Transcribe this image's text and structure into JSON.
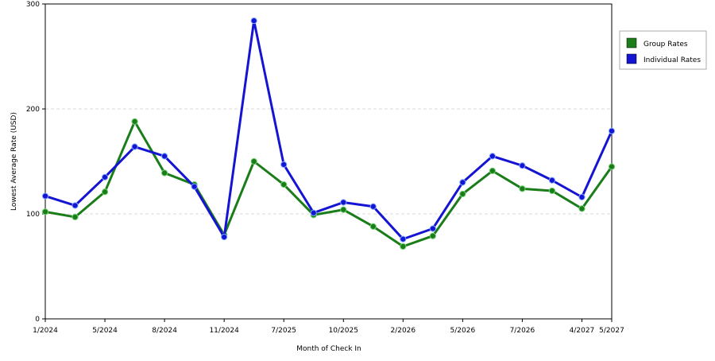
{
  "chart_data": {
    "type": "line",
    "xlabel": "Month of Check In",
    "ylabel": "Lowest Average Rate (USD)",
    "ylim": [
      0,
      300
    ],
    "yticks": [
      0,
      100,
      200,
      300
    ],
    "grid": true,
    "legend_position": "right",
    "x_tick_labels": [
      {
        "index": 0,
        "label": "1/2024"
      },
      {
        "index": 2,
        "label": "5/2024"
      },
      {
        "index": 4,
        "label": "8/2024"
      },
      {
        "index": 6,
        "label": "11/2024"
      },
      {
        "index": 8,
        "label": "7/2025"
      },
      {
        "index": 10,
        "label": "10/2025"
      },
      {
        "index": 12,
        "label": "2/2026"
      },
      {
        "index": 14,
        "label": "5/2026"
      },
      {
        "index": 16,
        "label": "7/2026"
      },
      {
        "index": 18,
        "label": "4/2027"
      },
      {
        "index": 19,
        "label": "5/2027"
      }
    ],
    "series": [
      {
        "name": "Group Rates",
        "color": "#1a7d1a",
        "values": [
          102,
          97,
          121,
          188,
          139,
          128,
          80,
          150,
          128,
          99,
          104,
          88,
          69,
          79,
          119,
          141,
          124,
          122,
          105,
          145
        ]
      },
      {
        "name": "Individual Rates",
        "color": "#1414d2",
        "values": [
          117,
          108,
          135,
          164,
          155,
          126,
          78,
          284,
          147,
          101,
          111,
          107,
          76,
          86,
          130,
          155,
          146,
          132,
          116,
          179
        ]
      }
    ]
  }
}
